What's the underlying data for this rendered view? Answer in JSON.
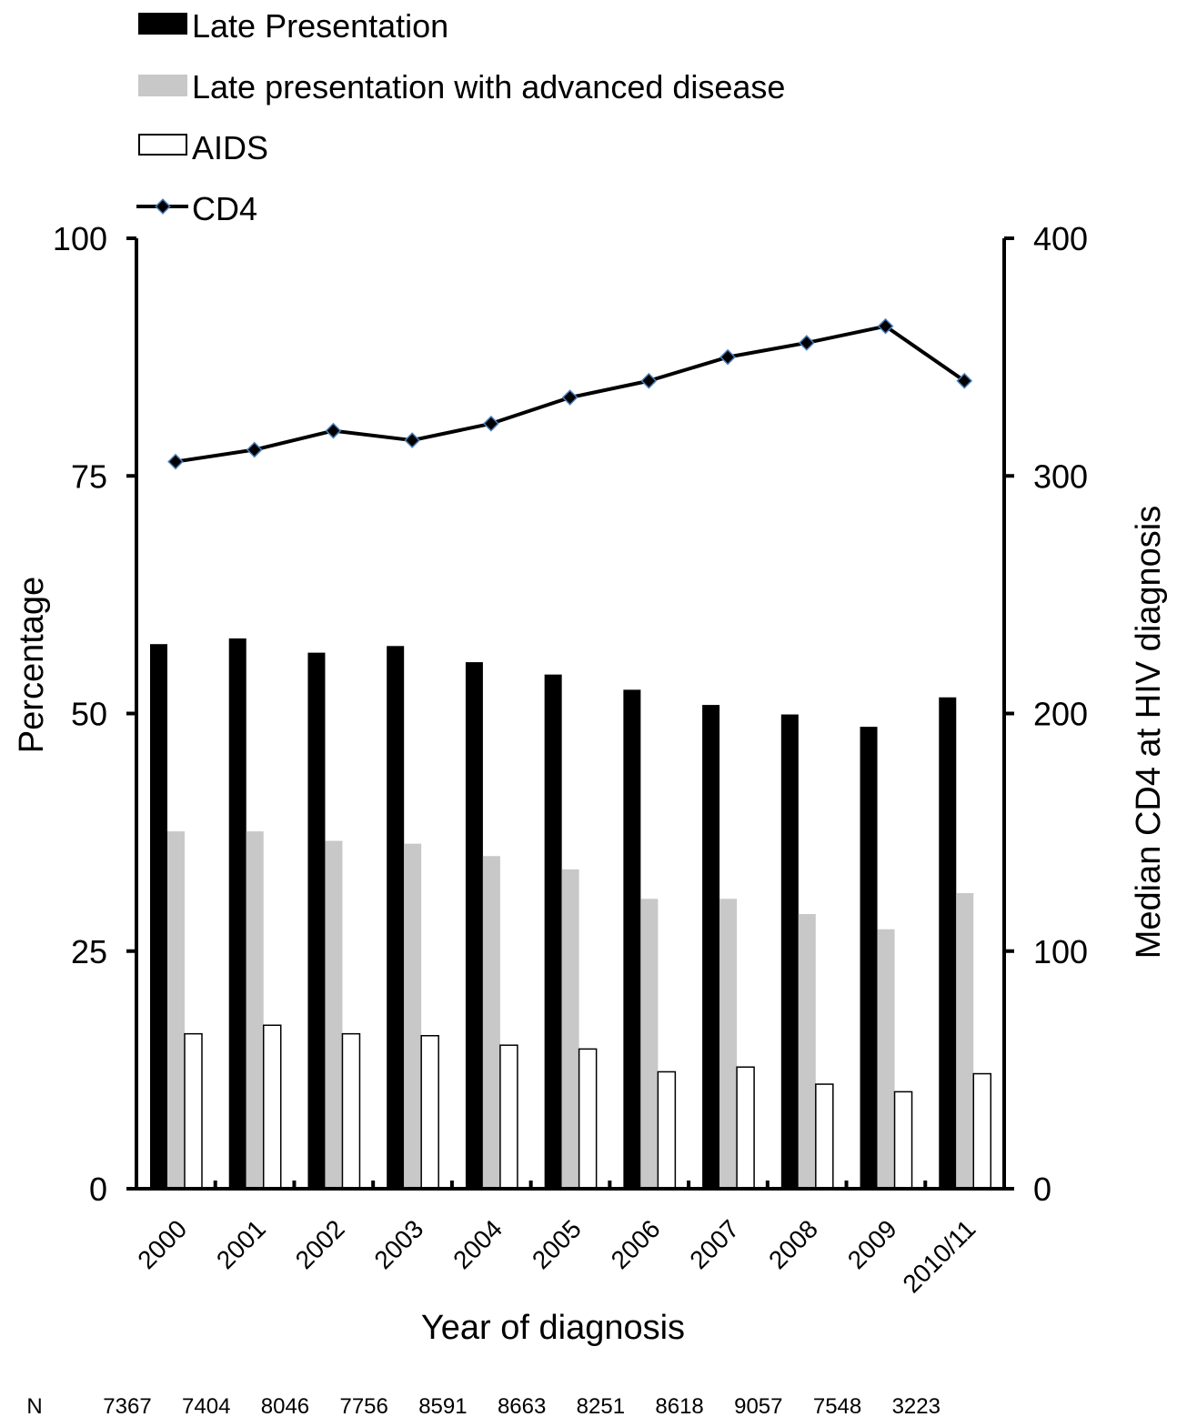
{
  "chart_data": {
    "type": "bar",
    "title": "",
    "xlabel": "Year of diagnosis",
    "ylabel": "Percentage",
    "y2label": "Median CD4 at HIV diagnosis",
    "ylim": [
      0,
      100
    ],
    "y2lim": [
      0,
      400
    ],
    "yticks": [
      0,
      25,
      50,
      75,
      100
    ],
    "y2ticks": [
      0,
      100,
      200,
      300,
      400
    ],
    "categories": [
      "2000",
      "2001",
      "2002",
      "2003",
      "2004",
      "2005",
      "2006",
      "2007",
      "2008",
      "2009",
      "2010/11"
    ],
    "series": [
      {
        "name": "Late Presentation",
        "type": "bar",
        "axis": "left",
        "color": "#000000",
        "values": [
          57.3,
          57.9,
          56.4,
          57.1,
          55.4,
          54.1,
          52.5,
          50.9,
          49.9,
          48.6,
          51.7
        ]
      },
      {
        "name": "Late presentation with advanced disease",
        "type": "bar",
        "axis": "left",
        "color": "#c8c8c8",
        "values": [
          37.6,
          37.6,
          36.6,
          36.3,
          35.0,
          33.6,
          30.5,
          30.5,
          28.9,
          27.3,
          31.1
        ]
      },
      {
        "name": "AIDS",
        "type": "bar",
        "axis": "left",
        "color": "#ffffff",
        "values": [
          16.3,
          17.2,
          16.3,
          16.1,
          15.1,
          14.7,
          12.3,
          12.8,
          11.0,
          10.2,
          12.1
        ]
      },
      {
        "name": "CD4",
        "type": "line",
        "axis": "right",
        "color": "#000000",
        "values": [
          306,
          311,
          319,
          315,
          322,
          333,
          340,
          350,
          356,
          363,
          340
        ]
      }
    ],
    "n_label": "N",
    "n_values": [
      "7367",
      "7404",
      "8046",
      "7756",
      "8591",
      "8663",
      "8251",
      "8618",
      "9057",
      "7548",
      "3223"
    ],
    "legend_position": "top-left"
  }
}
